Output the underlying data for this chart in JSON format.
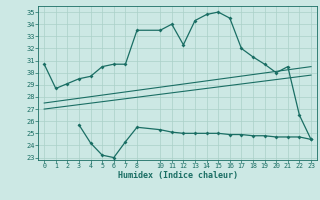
{
  "xlabel": "Humidex (Indice chaleur)",
  "bg_color": "#cce8e4",
  "line_color": "#1a6e64",
  "grid_color": "#aad0c8",
  "xlim": [
    -0.5,
    23.5
  ],
  "ylim": [
    22.8,
    35.5
  ],
  "yticks": [
    23,
    24,
    25,
    26,
    27,
    28,
    29,
    30,
    31,
    32,
    33,
    34,
    35
  ],
  "xticks": [
    0,
    1,
    2,
    3,
    4,
    5,
    6,
    7,
    8,
    10,
    11,
    12,
    13,
    14,
    15,
    16,
    17,
    18,
    19,
    20,
    21,
    22,
    23
  ],
  "upper_x": [
    0,
    1,
    2,
    3,
    4,
    5,
    6,
    7,
    8,
    10,
    11,
    12,
    13,
    14,
    15,
    16,
    17,
    18,
    19,
    20,
    21,
    22,
    23
  ],
  "upper_y": [
    30.7,
    28.7,
    29.1,
    29.5,
    29.7,
    30.5,
    30.7,
    30.7,
    33.5,
    33.5,
    34.0,
    32.3,
    34.3,
    34.8,
    35.0,
    34.5,
    32.0,
    31.3,
    30.7,
    30.0,
    30.5,
    26.5,
    24.5
  ],
  "trend1_x": [
    0,
    23
  ],
  "trend1_y": [
    27.5,
    30.5
  ],
  "trend2_x": [
    0,
    23
  ],
  "trend2_y": [
    27.0,
    29.8
  ],
  "lower_x": [
    3,
    4,
    5,
    6,
    7,
    8,
    10,
    11,
    12,
    13,
    14,
    15,
    16,
    17,
    18,
    19,
    20,
    21,
    22,
    23
  ],
  "lower_y": [
    25.7,
    24.2,
    23.2,
    23.0,
    24.3,
    25.5,
    25.3,
    25.1,
    25.0,
    25.0,
    25.0,
    25.0,
    24.9,
    24.9,
    24.8,
    24.8,
    24.7,
    24.7,
    24.7,
    24.5
  ]
}
